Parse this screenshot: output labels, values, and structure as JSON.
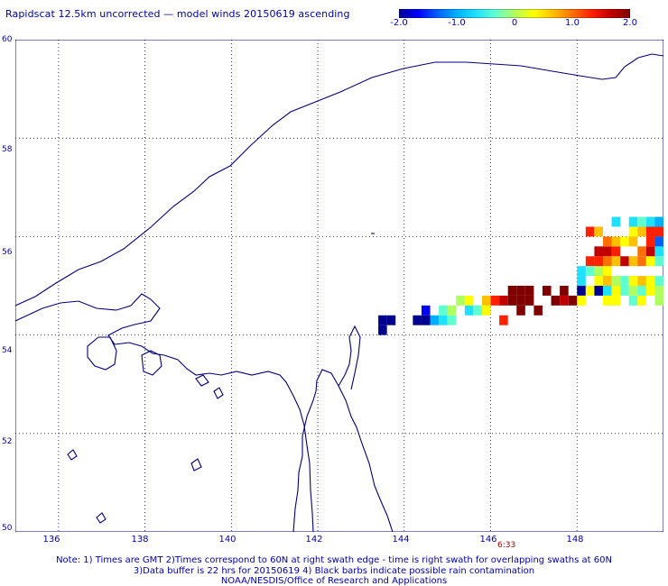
{
  "title": "Rapidscat 12.5km uncorrected — model winds 20150619 ascending",
  "colorbar": {
    "ticks": [
      "-2.0",
      "-1.0",
      "0",
      "1.0",
      "2.0"
    ],
    "min": -2.0,
    "max": 2.0,
    "colors": [
      "#000090",
      "#0000ff",
      "#0060ff",
      "#00b0ff",
      "#20e0ff",
      "#60ffd0",
      "#b0ff60",
      "#ffff00",
      "#ffc000",
      "#ff7000",
      "#ff2000",
      "#c00000",
      "#800000"
    ]
  },
  "map": {
    "lon_range": [
      135,
      150
    ],
    "lat_range": [
      50,
      60
    ],
    "lat_labels": [
      "60",
      "58",
      "56",
      "54",
      "52",
      "50"
    ],
    "lon_labels": [
      "136",
      "138",
      "140",
      "142",
      "144",
      "146",
      "148"
    ],
    "grid": true,
    "coastline_color": "#00007a"
  },
  "time_label": "6:33",
  "notes": [
    "Note: 1) Times are GMT 2)Times correspond to 60N at right swath edge - time is right swath for overlapping swaths at 60N",
    "3)Data buffer is 22 hrs for 20150619 4) Black barbs indicate possible rain contamination",
    "NOAA/NESDIS/Office of Research and Applications"
  ],
  "wind_cells": [
    [
      143.4,
      54.2,
      -2.0
    ],
    [
      143.6,
      54.2,
      -2.0
    ],
    [
      143.4,
      54.0,
      -2.0
    ],
    [
      144.2,
      54.2,
      -2.0
    ],
    [
      144.4,
      54.2,
      -2.0
    ],
    [
      144.4,
      54.4,
      -1.6
    ],
    [
      144.6,
      54.2,
      -1.0
    ],
    [
      144.8,
      54.4,
      -0.4
    ],
    [
      144.8,
      54.2,
      -0.6
    ],
    [
      145.0,
      54.2,
      -0.4
    ],
    [
      145.0,
      54.4,
      0.0
    ],
    [
      145.2,
      54.6,
      0.0
    ],
    [
      145.4,
      54.4,
      -0.6
    ],
    [
      145.6,
      54.4,
      -0.2
    ],
    [
      145.4,
      54.6,
      0.2
    ],
    [
      145.8,
      54.6,
      0.6
    ],
    [
      145.8,
      54.4,
      0.4
    ],
    [
      146.0,
      54.6,
      1.2
    ],
    [
      146.2,
      54.6,
      1.6
    ],
    [
      146.2,
      54.2,
      1.3
    ],
    [
      146.4,
      54.6,
      2.0
    ],
    [
      146.4,
      54.8,
      2.0
    ],
    [
      146.6,
      54.8,
      2.0
    ],
    [
      146.6,
      54.6,
      2.0
    ],
    [
      146.8,
      54.8,
      2.0
    ],
    [
      146.8,
      54.6,
      2.0
    ],
    [
      146.6,
      54.4,
      2.0
    ],
    [
      147.0,
      54.4,
      2.0
    ],
    [
      147.2,
      54.8,
      2.0
    ],
    [
      147.4,
      54.6,
      2.0
    ],
    [
      147.6,
      54.8,
      2.0
    ],
    [
      147.6,
      54.6,
      1.6
    ],
    [
      147.8,
      54.6,
      2.0
    ],
    [
      148.0,
      54.8,
      -2.0
    ],
    [
      148.0,
      54.6,
      0.2
    ],
    [
      148.2,
      54.8,
      0.4
    ],
    [
      148.6,
      55.2,
      0.2
    ],
    [
      148.4,
      55.2,
      0.0
    ],
    [
      148.4,
      55.0,
      0.4
    ],
    [
      148.6,
      55.0,
      0.6
    ],
    [
      148.8,
      55.0,
      0.0
    ],
    [
      149.0,
      55.0,
      -0.4
    ],
    [
      149.2,
      55.0,
      0.3
    ],
    [
      149.4,
      55.0,
      0.8
    ],
    [
      149.6,
      55.0,
      0.2
    ],
    [
      149.8,
      55.0,
      -0.2
    ],
    [
      148.6,
      55.4,
      0.9
    ],
    [
      148.8,
      55.4,
      0.5
    ],
    [
      149.0,
      55.4,
      1.5
    ],
    [
      149.2,
      55.4,
      0.6
    ],
    [
      149.4,
      55.4,
      1.0
    ],
    [
      149.6,
      55.4,
      0.3
    ],
    [
      149.8,
      55.4,
      -0.5
    ],
    [
      148.2,
      55.4,
      1.2
    ],
    [
      148.4,
      55.4,
      1.4
    ],
    [
      148.2,
      55.2,
      -0.4
    ],
    [
      148.0,
      55.0,
      -0.8
    ],
    [
      148.0,
      55.2,
      -0.6
    ],
    [
      148.4,
      55.6,
      1.6
    ],
    [
      148.6,
      55.6,
      1.8
    ],
    [
      148.8,
      55.6,
      1.4
    ],
    [
      149.4,
      55.6,
      1.0
    ],
    [
      149.6,
      55.6,
      1.6
    ],
    [
      149.8,
      55.6,
      -0.6
    ],
    [
      148.6,
      55.8,
      1.0
    ],
    [
      148.8,
      55.8,
      0.6
    ],
    [
      149.0,
      55.8,
      0.4
    ],
    [
      149.2,
      55.8,
      0.8
    ],
    [
      149.6,
      55.8,
      1.2
    ],
    [
      149.8,
      55.8,
      -1.2
    ],
    [
      148.2,
      56.0,
      1.4
    ],
    [
      148.4,
      56.0,
      0.8
    ],
    [
      149.2,
      56.0,
      0.4
    ],
    [
      149.4,
      56.0,
      0.8
    ],
    [
      149.6,
      56.0,
      1.4
    ],
    [
      149.8,
      56.0,
      1.2
    ],
    [
      148.8,
      56.2,
      -0.6
    ],
    [
      149.2,
      56.2,
      -0.8
    ],
    [
      149.4,
      56.2,
      -0.4
    ],
    [
      149.6,
      56.2,
      -0.8
    ],
    [
      149.8,
      56.2,
      -1.0
    ],
    [
      148.6,
      54.8,
      -0.8
    ],
    [
      148.8,
      54.8,
      0.2
    ],
    [
      149.0,
      54.8,
      -0.4
    ],
    [
      149.2,
      54.8,
      0.0
    ],
    [
      149.4,
      54.8,
      -0.2
    ],
    [
      149.6,
      54.8,
      0.4
    ],
    [
      149.8,
      54.8,
      0.0
    ],
    [
      148.4,
      54.8,
      -2.0
    ],
    [
      148.6,
      54.6,
      0.2
    ],
    [
      148.8,
      54.6,
      0.4
    ],
    [
      149.2,
      54.6,
      -0.4
    ],
    [
      149.4,
      54.6,
      0.3
    ],
    [
      149.8,
      54.6,
      0.1
    ]
  ]
}
